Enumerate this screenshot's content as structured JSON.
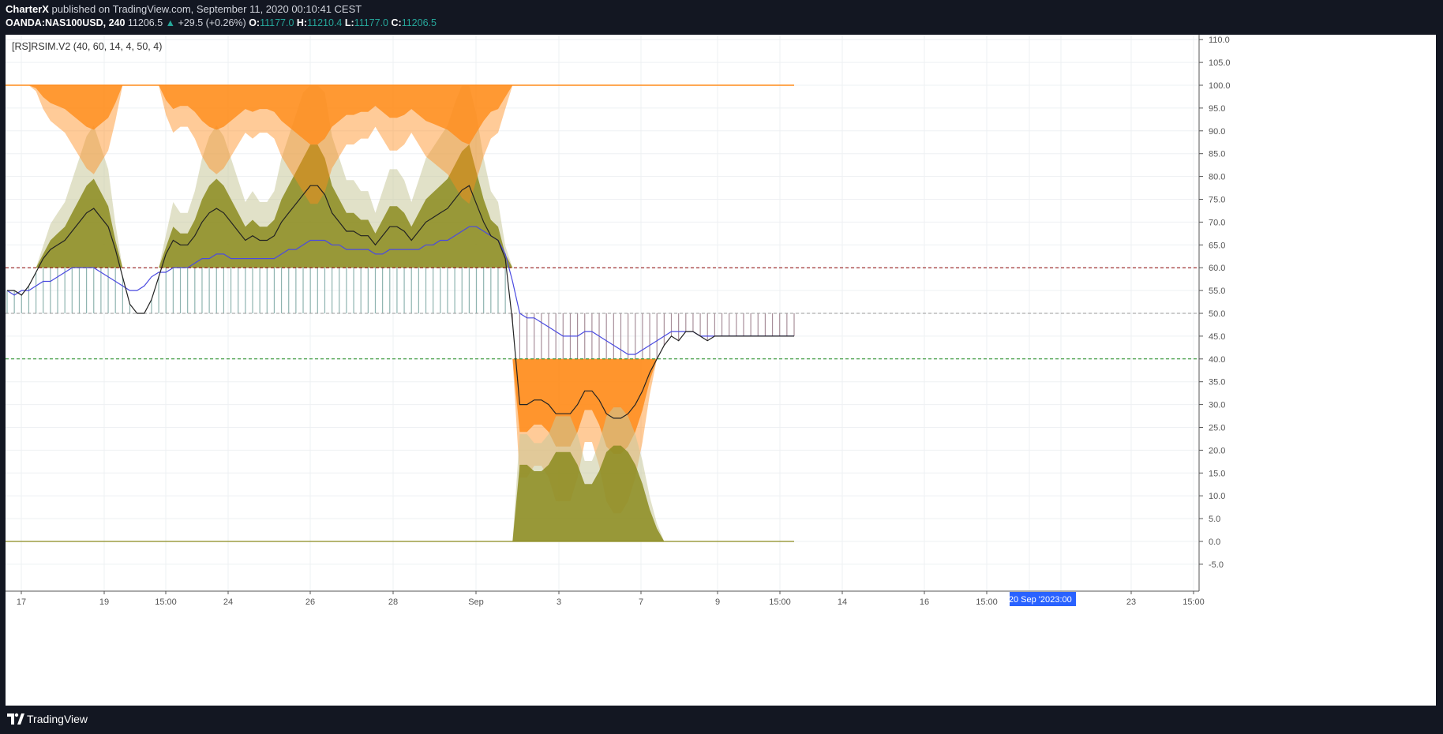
{
  "header": {
    "publisher": "CharterX",
    "published_text": "published on TradingView.com, September 11, 2020 00:10:41 CEST",
    "symbol": "OANDA:NAS100USD, 240",
    "last_price": "11206.5",
    "change_arrow": "▲",
    "change": "+29.5 (+0.26%)",
    "open_label": "O:",
    "open": "11177.0",
    "high_label": "H:",
    "high": "11210.4",
    "low_label": "L:",
    "low": "11177.0",
    "close_label": "C:",
    "close": "11206.5"
  },
  "indicator_label": "[RS]RSIM.V2 (40, 60, 14, 4, 50, 4)",
  "footer": {
    "brand": "TradingView"
  },
  "x_axis": {
    "ticks": [
      "17",
      "19",
      "15:00",
      "24",
      "26",
      "28",
      "Sep",
      "3",
      "7",
      "9",
      "15:00",
      "14",
      "16",
      "15:00",
      "20 Sep '20",
      "23:00",
      "23",
      "15:00"
    ],
    "highlight_date": "20 Sep '20",
    "highlight_time": "23:00"
  },
  "colors": {
    "orange": "#ff8c1a",
    "olive": "#8b8b1e",
    "olive_light": "#c8c89a",
    "rsi_line": "#222222",
    "signal_line": "#4a4ae0",
    "upper_level": "#8b0000",
    "lower_level": "#1a8a1a",
    "mid_level": "#999999",
    "highlight": "#2962ff"
  },
  "chart_data": {
    "type": "area",
    "title": "[RS]RSIM.V2 (40, 60, 14, 4, 50, 4)",
    "ylim": [
      -7,
      110
    ],
    "y_ticks": [
      110,
      105,
      100,
      95,
      90,
      85,
      80,
      75,
      70,
      65,
      60,
      55,
      50,
      45,
      40,
      35,
      30,
      25,
      20,
      15,
      10,
      5,
      0,
      -5
    ],
    "levels": {
      "upper": 60,
      "mid": 50,
      "lower": 40,
      "top": 100,
      "bottom": 0
    },
    "x": [
      0,
      1,
      2,
      3,
      4,
      5,
      6,
      7,
      8,
      9,
      10,
      11,
      12,
      13,
      14,
      15,
      16,
      17,
      18,
      19,
      20,
      21,
      22,
      23,
      24,
      25,
      26,
      27,
      28,
      29,
      30,
      31,
      32,
      33,
      34,
      35,
      36,
      37,
      38,
      39,
      40,
      41,
      42,
      43,
      44,
      45,
      46,
      47,
      48,
      49,
      50,
      51,
      52,
      53,
      54,
      55,
      56,
      57,
      58,
      59,
      60,
      61,
      62,
      63,
      64,
      65,
      66,
      67,
      68,
      69,
      70,
      71,
      72,
      73,
      74,
      75,
      76,
      77,
      78,
      79,
      80,
      81,
      82,
      83,
      84,
      85,
      86,
      87,
      88,
      89,
      90,
      91,
      92,
      93,
      94,
      95,
      96,
      97,
      98,
      99,
      100,
      101,
      102,
      103,
      104,
      105,
      106,
      107,
      108,
      109
    ],
    "series": [
      {
        "values": [
          55,
          55,
          54,
          56,
          59,
          62,
          64,
          65,
          66,
          68,
          70,
          72,
          73,
          71,
          69,
          64,
          58,
          52,
          50,
          50,
          53,
          58,
          63,
          66,
          65,
          65,
          67,
          70,
          72,
          73,
          72,
          70,
          68,
          66,
          67,
          66,
          66,
          67,
          70,
          72,
          74,
          76,
          78,
          78,
          76,
          72,
          70,
          68,
          68,
          67,
          67,
          65,
          67,
          69,
          69,
          68,
          66,
          68,
          70,
          71,
          72,
          73,
          75,
          77,
          78,
          74,
          70,
          67,
          66,
          62,
          48,
          30,
          30,
          31,
          31,
          30,
          28,
          28,
          28,
          30,
          33,
          33,
          31,
          28,
          27,
          27,
          28,
          30,
          33,
          37,
          40,
          43,
          45,
          44,
          46,
          46,
          45,
          44,
          45,
          45,
          45,
          45,
          45,
          45,
          45,
          45,
          45,
          45,
          45,
          45
        ]
      },
      {
        "values": [
          55,
          54,
          55,
          55,
          56,
          57,
          57,
          58,
          59,
          60,
          60,
          60,
          60,
          59,
          58,
          57,
          56,
          55,
          55,
          56,
          58,
          59,
          59,
          60,
          60,
          60,
          61,
          62,
          62,
          63,
          63,
          62,
          62,
          62,
          62,
          62,
          62,
          62,
          63,
          64,
          64,
          65,
          66,
          66,
          66,
          65,
          65,
          64,
          64,
          64,
          64,
          63,
          63,
          64,
          64,
          64,
          64,
          64,
          65,
          65,
          66,
          66,
          67,
          68,
          69,
          69,
          68,
          67,
          66,
          63,
          57,
          50,
          49,
          49,
          48,
          47,
          46,
          45,
          45,
          45,
          46,
          46,
          45,
          44,
          43,
          42,
          41,
          41,
          42,
          43,
          44,
          45,
          46,
          46,
          46,
          46,
          45,
          45,
          45,
          45,
          45,
          45,
          45,
          45,
          45,
          45,
          45,
          45,
          45,
          45
        ]
      }
    ]
  }
}
